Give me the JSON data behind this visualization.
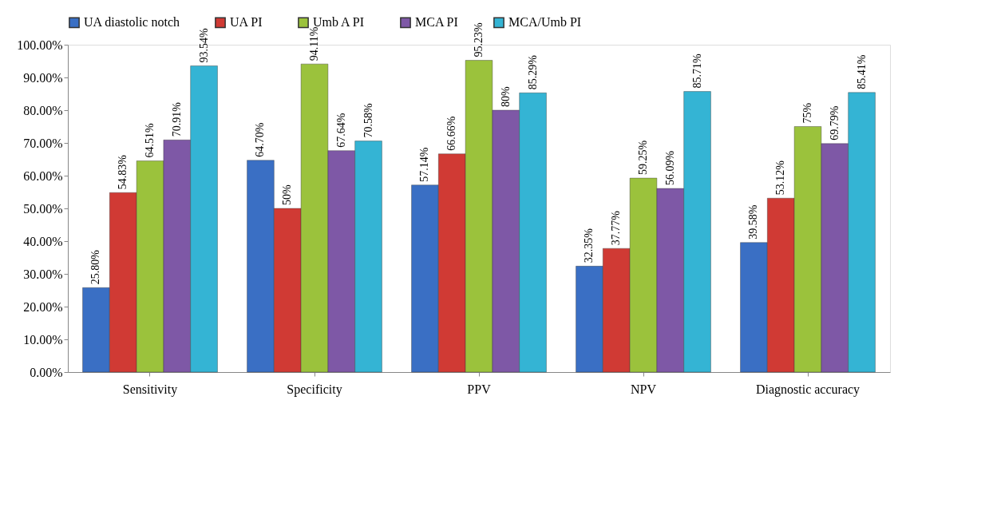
{
  "chart_data": {
    "type": "bar",
    "categories": [
      "Sensitivity",
      "Specificity",
      "PPV",
      "NPV",
      "Diagnostic accuracy"
    ],
    "series": [
      {
        "name": "UA diastolic notch",
        "color": "#3a6fc4",
        "values": [
          25.8,
          64.7,
          57.14,
          32.35,
          39.58
        ],
        "value_labels": [
          "25.80%",
          "64.70%",
          "57.14%",
          "32.35%",
          "39.58%"
        ]
      },
      {
        "name": "UA PI",
        "color": "#d03a34",
        "values": [
          54.83,
          50,
          66.66,
          37.77,
          53.12
        ],
        "value_labels": [
          "54.83%",
          "50%",
          "66.66%",
          "37.77%",
          "53.12%"
        ]
      },
      {
        "name": "Umb A PI",
        "color": "#9bc23c",
        "values": [
          64.51,
          94.11,
          95.23,
          59.25,
          75
        ],
        "value_labels": [
          "64.51%",
          "94.11%",
          "95.23%",
          "59.25%",
          "75%"
        ]
      },
      {
        "name": "MCA PI",
        "color": "#7e58a6",
        "values": [
          70.91,
          67.64,
          80,
          56.09,
          69.79
        ],
        "value_labels": [
          "70.91%",
          "67.64%",
          "80%",
          "56.09%",
          "69.79%"
        ]
      },
      {
        "name": "MCA/Umb PI",
        "color": "#34b4d4",
        "values": [
          93.54,
          70.58,
          85.29,
          85.71,
          85.41
        ],
        "value_labels": [
          "93.54%",
          "70.58%",
          "85.29%",
          "85.71%",
          "85.41%"
        ]
      }
    ],
    "ylim": [
      0,
      100
    ],
    "yticks": [
      {
        "value": 0,
        "label": "0.00%"
      },
      {
        "value": 10,
        "label": "10.00%"
      },
      {
        "value": 20,
        "label": "20.00%"
      },
      {
        "value": 30,
        "label": "30.00%"
      },
      {
        "value": 40,
        "label": "40.00%"
      },
      {
        "value": 50,
        "label": "50.00%"
      },
      {
        "value": 60,
        "label": "60.00%"
      },
      {
        "value": 70,
        "label": "70.00%"
      },
      {
        "value": 80,
        "label": "80.00%"
      },
      {
        "value": 90,
        "label": "90.00%"
      },
      {
        "value": 100,
        "label": "100.00%"
      }
    ],
    "legend": "top",
    "grid": false
  }
}
